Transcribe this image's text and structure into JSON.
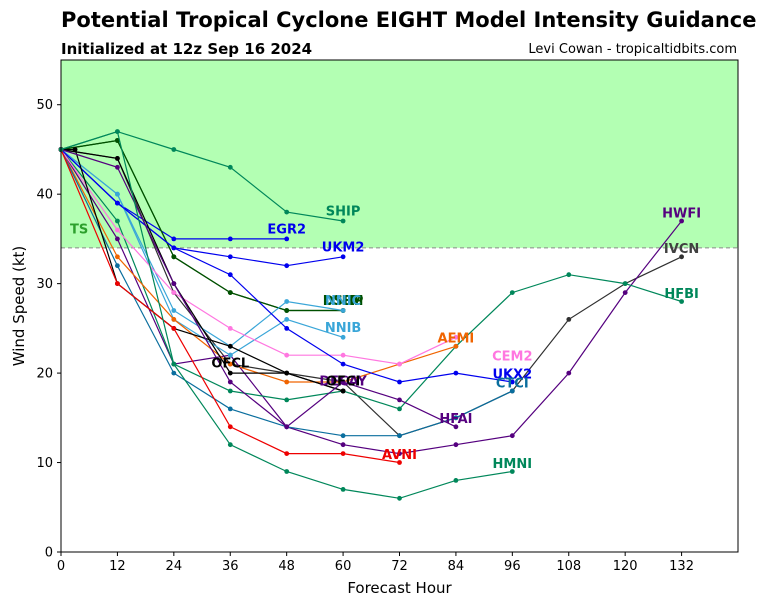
{
  "header": {
    "title": "Potential Tropical Cyclone EIGHT Model Intensity Guidance",
    "subtitle": "Initialized at 12z Sep 16 2024",
    "credit": "Levi Cowan - tropicaltidbits.com"
  },
  "chart_data": {
    "type": "line",
    "xlabel": "Forecast Hour",
    "ylabel": "Wind Speed (kt)",
    "xlim": [
      0,
      144
    ],
    "ylim": [
      0,
      55
    ],
    "x_ticks": [
      0,
      12,
      24,
      36,
      48,
      60,
      72,
      84,
      96,
      108,
      120,
      132
    ],
    "y_ticks": [
      0,
      10,
      20,
      30,
      40,
      50
    ],
    "grid": false,
    "tropical_storm_threshold": {
      "value": 34,
      "label": "TS",
      "shade_color": "#b3ffb3",
      "label_color": "#2ca02c"
    },
    "series": [
      {
        "name": "SHIP",
        "color": "#00875a",
        "x": [
          0,
          12,
          24,
          36,
          48,
          60
        ],
        "y": [
          45,
          47,
          45,
          43,
          38,
          37
        ]
      },
      {
        "name": "EGR2",
        "color": "#0000ee",
        "x": [
          0,
          12,
          24,
          36,
          48
        ],
        "y": [
          45,
          39,
          35,
          35,
          35
        ]
      },
      {
        "name": "UKM2",
        "color": "#0000ee",
        "x": [
          0,
          12,
          24,
          36,
          48,
          60
        ],
        "y": [
          45,
          39,
          34,
          33,
          32,
          33
        ]
      },
      {
        "name": "DSHP",
        "color": "#005000",
        "x": [
          0,
          12,
          24,
          36,
          48,
          60
        ],
        "y": [
          45,
          46,
          33,
          29,
          27,
          27
        ]
      },
      {
        "name": "LGEM",
        "color": "#005000",
        "x": [
          0,
          12,
          24,
          36,
          48,
          60
        ],
        "y": [
          45,
          46,
          33,
          29,
          27,
          27
        ]
      },
      {
        "name": "IVCN",
        "color": "#303030",
        "x": [
          0,
          12,
          24,
          36,
          48,
          60,
          72,
          84,
          96,
          108,
          120,
          132
        ],
        "y": [
          45,
          44,
          29,
          21,
          20,
          19,
          13,
          15,
          18,
          26,
          30,
          33
        ]
      },
      {
        "name": "HWFI",
        "color": "#55007f",
        "x": [
          0,
          12,
          24,
          36,
          48,
          60,
          72,
          84,
          96,
          108,
          120,
          132
        ],
        "y": [
          45,
          35,
          21,
          22,
          14,
          12,
          11,
          12,
          13,
          20,
          29,
          37
        ]
      },
      {
        "name": "HFBI",
        "color": "#00875a",
        "x": [
          0,
          12,
          24,
          36,
          48,
          60,
          72,
          84,
          96,
          108,
          120,
          132
        ],
        "y": [
          45,
          37,
          21,
          18,
          17,
          18,
          16,
          23,
          29,
          31,
          30,
          28
        ]
      },
      {
        "name": "NNIB",
        "color": "#3aa6d8",
        "x": [
          0,
          12,
          24,
          36,
          48,
          60
        ],
        "y": [
          45,
          40,
          27,
          23,
          28,
          27
        ]
      },
      {
        "name": "NNIC",
        "color": "#3aa6d8",
        "x": [
          0,
          12,
          24,
          36,
          48,
          60
        ],
        "y": [
          45,
          40,
          26,
          22,
          26,
          24
        ]
      },
      {
        "name": "AEMI",
        "color": "#f06400",
        "x": [
          0,
          12,
          24,
          36,
          48,
          60,
          72,
          84
        ],
        "y": [
          45,
          33,
          26,
          21,
          19,
          19,
          21,
          23
        ]
      },
      {
        "name": "CEM2",
        "color": "#ff77e0",
        "x": [
          0,
          12,
          24,
          36,
          48,
          60,
          72,
          84
        ],
        "y": [
          45,
          36,
          29,
          25,
          22,
          22,
          21,
          24
        ]
      },
      {
        "name": "UKX2",
        "color": "#0000ee",
        "x": [
          0,
          12,
          24,
          36,
          48,
          60,
          72,
          84,
          96
        ],
        "y": [
          45,
          39,
          34,
          31,
          25,
          21,
          19,
          20,
          19
        ]
      },
      {
        "name": "CTCI",
        "color": "#0a6e9e",
        "x": [
          0,
          12,
          24,
          36,
          48,
          60,
          72,
          84,
          96
        ],
        "y": [
          45,
          32,
          20,
          16,
          14,
          13,
          13,
          15,
          18
        ]
      },
      {
        "name": "OFCL",
        "color": "#000000",
        "x": [
          0,
          3,
          12,
          24,
          36,
          48,
          60
        ],
        "y": [
          45,
          45,
          30,
          25,
          23,
          20,
          18
        ]
      },
      {
        "name": "OFCI",
        "color": "#000000",
        "x": [
          0,
          12,
          24,
          36,
          48,
          60
        ],
        "y": [
          45,
          44,
          30,
          20,
          20,
          18
        ]
      },
      {
        "name": "DECAY",
        "color": "#55007f",
        "x": [
          0,
          12,
          24,
          36,
          48,
          60,
          72,
          84
        ],
        "y": [
          45,
          43,
          30,
          19,
          14,
          19,
          17,
          14
        ]
      },
      {
        "name": "AVNI",
        "color": "#ee0000",
        "x": [
          0,
          12,
          24,
          36,
          48,
          60,
          72
        ],
        "y": [
          45,
          30,
          25,
          14,
          11,
          11,
          10
        ]
      },
      {
        "name": "HMNI",
        "color": "#00875a",
        "x": [
          0,
          12,
          24,
          36,
          48,
          60,
          72,
          84,
          96
        ],
        "y": [
          45,
          47,
          21,
          12,
          9,
          7,
          6,
          8,
          9
        ]
      }
    ],
    "annotations": [
      {
        "text": "SHIP",
        "x": 60,
        "y": 37.6,
        "color": "#00875a"
      },
      {
        "text": "EGR2",
        "x": 48,
        "y": 35.6,
        "color": "#0000ee"
      },
      {
        "text": "UKM2",
        "x": 60,
        "y": 33.6,
        "color": "#0000ee"
      },
      {
        "text": "DSHP",
        "x": 60,
        "y": 27.6,
        "color": "#005000"
      },
      {
        "text": "LGEM",
        "x": 60,
        "y": 27.6,
        "color": "#005000"
      },
      {
        "text": "NNIC",
        "x": 60,
        "y": 27.6,
        "color": "#3aa6d8"
      },
      {
        "text": "NNIB",
        "x": 60,
        "y": 24.6,
        "color": "#3aa6d8"
      },
      {
        "text": "OFCL",
        "x": 36,
        "y": 20.6,
        "color": "#000000"
      },
      {
        "text": "DECAY",
        "x": 60,
        "y": 18.6,
        "color": "#55007f"
      },
      {
        "text": "OFCI",
        "x": 60,
        "y": 18.6,
        "color": "#000000"
      },
      {
        "text": "AEMI",
        "x": 84,
        "y": 23.4,
        "color": "#f06400"
      },
      {
        "text": "CEM2",
        "x": 96,
        "y": 21.4,
        "color": "#ff77e0"
      },
      {
        "text": "UKX2",
        "x": 96,
        "y": 19.4,
        "color": "#0000ee"
      },
      {
        "text": "CTCI",
        "x": 96,
        "y": 18.4,
        "color": "#0a6e9e"
      },
      {
        "text": "HFAI",
        "x": 84,
        "y": 14.4,
        "color": "#55007f"
      },
      {
        "text": "AVNI",
        "x": 72,
        "y": 10.4,
        "color": "#ee0000"
      },
      {
        "text": "HMNI",
        "x": 96,
        "y": 9.4,
        "color": "#00875a"
      },
      {
        "text": "HWFI",
        "x": 132,
        "y": 37.4,
        "color": "#55007f"
      },
      {
        "text": "IVCN",
        "x": 132,
        "y": 33.4,
        "color": "#404040"
      },
      {
        "text": "HFBI",
        "x": 132,
        "y": 28.4,
        "color": "#00875a"
      }
    ]
  }
}
